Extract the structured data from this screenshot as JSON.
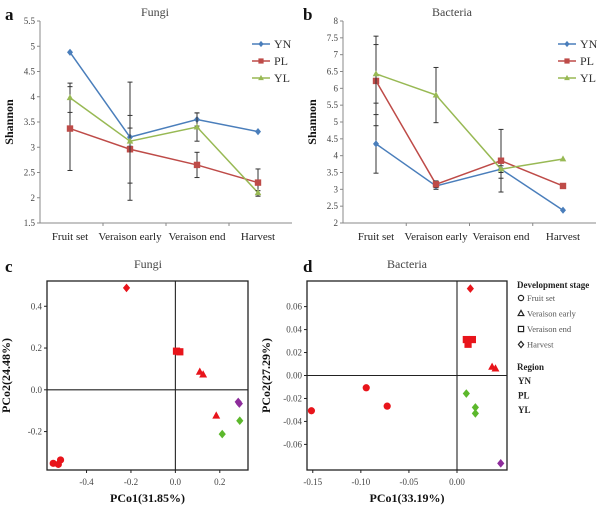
{
  "chart_data": [
    {
      "panel": "a",
      "type": "line",
      "title": "Fungi",
      "ylabel": "Shannon",
      "categories": [
        "Fruit set",
        "Veraison early",
        "Veraison end",
        "Harvest"
      ],
      "ylim": [
        1.5,
        5.5
      ],
      "yticks": [
        "1.5",
        "2",
        "2.5",
        "3",
        "3.5",
        "4",
        "4.5",
        "5",
        "5.5"
      ],
      "legend": "top-right",
      "series": [
        {
          "name": "YN",
          "color": "#4a7ebb",
          "marker": "diamond",
          "values": [
            4.88,
            3.2,
            3.55,
            3.31
          ],
          "errors": [
            0,
            0.18,
            0.13,
            0
          ]
        },
        {
          "name": "PL",
          "color": "#be4b48",
          "marker": "square",
          "values": [
            3.37,
            2.96,
            2.65,
            2.3
          ],
          "errors": [
            0.83,
            0.67,
            0.25,
            0.27
          ]
        },
        {
          "name": "YL",
          "color": "#98b954",
          "marker": "triangle",
          "values": [
            3.98,
            3.12,
            3.4,
            2.1
          ],
          "errors": [
            0.29,
            1.17,
            0.28,
            0.04
          ]
        }
      ]
    },
    {
      "panel": "b",
      "type": "line",
      "title": "Bacteria",
      "ylabel": "Shannon",
      "categories": [
        "Fruit set",
        "Veraison early",
        "Veraison end",
        "Harvest"
      ],
      "ylim": [
        2,
        8
      ],
      "yticks": [
        "2",
        "2.5",
        "3",
        "3.5",
        "4",
        "4.5",
        "5",
        "5.5",
        "6",
        "6.5",
        "7",
        "7.5",
        "8"
      ],
      "legend": "top-right",
      "series": [
        {
          "name": "YN",
          "color": "#4a7ebb",
          "marker": "diamond",
          "values": [
            4.35,
            3.1,
            3.6,
            2.38
          ],
          "errors": [
            0.87,
            0.1,
            0.27,
            0
          ]
        },
        {
          "name": "PL",
          "color": "#be4b48",
          "marker": "square",
          "values": [
            6.22,
            3.15,
            3.85,
            3.1
          ],
          "errors": [
            1.33,
            0.1,
            0.93,
            0
          ]
        },
        {
          "name": "YL",
          "color": "#98b954",
          "marker": "triangle",
          "values": [
            6.43,
            5.8,
            3.6,
            3.9
          ],
          "errors": [
            0.87,
            0.82,
            0.1,
            0
          ]
        }
      ]
    },
    {
      "panel": "c",
      "type": "scatter",
      "title": "Fungi",
      "xlabel": "PCo1(31.85%)",
      "ylabel": "PCo2(24.48%)",
      "xlim": [
        -0.578,
        0.327
      ],
      "ylim": [
        -0.384,
        0.521
      ],
      "xticks": [
        -0.4,
        -0.2,
        0.0,
        0.2
      ],
      "xtick_labels": [
        "-0.4",
        "-0.2",
        "0.0",
        "0.2"
      ],
      "yticks": [
        -0.2,
        0.0,
        0.2,
        0.4
      ],
      "ytick_labels": [
        "-0.2",
        "0.0",
        "0.2",
        "0.4"
      ],
      "points": [
        {
          "x": -0.22,
          "y": 0.488,
          "stage": "Harvest",
          "region": "YN"
        },
        {
          "x": 0.005,
          "y": 0.185,
          "stage": "Veraison end",
          "region": "YN"
        },
        {
          "x": 0.02,
          "y": 0.182,
          "stage": "Veraison end",
          "region": "YN"
        },
        {
          "x": 0.11,
          "y": 0.086,
          "stage": "Veraison early",
          "region": "YN"
        },
        {
          "x": 0.125,
          "y": 0.073,
          "stage": "Veraison early",
          "region": "YN"
        },
        {
          "x": 0.184,
          "y": -0.124,
          "stage": "Veraison early",
          "region": "YN"
        },
        {
          "x": 0.283,
          "y": -0.058,
          "stage": "Harvest",
          "region": "YL"
        },
        {
          "x": 0.288,
          "y": -0.066,
          "stage": "Harvest",
          "region": "YL"
        },
        {
          "x": 0.29,
          "y": -0.148,
          "stage": "Harvest",
          "region": "PL"
        },
        {
          "x": 0.211,
          "y": -0.212,
          "stage": "Harvest",
          "region": "PL"
        },
        {
          "x": -0.55,
          "y": -0.352,
          "stage": "Fruit set",
          "region": "YN"
        },
        {
          "x": -0.527,
          "y": -0.357,
          "stage": "Fruit set",
          "region": "YN"
        },
        {
          "x": -0.517,
          "y": -0.336,
          "stage": "Fruit set",
          "region": "YN"
        }
      ]
    },
    {
      "panel": "d",
      "type": "scatter",
      "title": "Bacteria",
      "xlabel": "PCo1(33.19%)",
      "ylabel": "PCo2(27.29%)",
      "xlim": [
        -0.156,
        0.052
      ],
      "ylim": [
        -0.0823,
        0.0823
      ],
      "xticks": [
        -0.15,
        -0.1,
        -0.05,
        0.0
      ],
      "xtick_labels": [
        "-0.15",
        "-0.10",
        "-0.05",
        "0.00"
      ],
      "yticks": [
        -0.06,
        -0.04,
        -0.02,
        0.0,
        0.02,
        0.04,
        0.06
      ],
      "ytick_labels": [
        "-0.06",
        "-0.04",
        "-0.02",
        "0.00",
        "0.02",
        "0.04",
        "0.06"
      ],
      "points": [
        {
          "x": 0.0139,
          "y": 0.0757,
          "stage": "Harvest",
          "region": "YN"
        },
        {
          "x": 0.0097,
          "y": 0.0313,
          "stage": "Veraison end",
          "region": "YN"
        },
        {
          "x": 0.016,
          "y": 0.0313,
          "stage": "Veraison end",
          "region": "YN"
        },
        {
          "x": 0.0115,
          "y": 0.0272,
          "stage": "Veraison end",
          "region": "YN"
        },
        {
          "x": 0.0365,
          "y": 0.0075,
          "stage": "Veraison early",
          "region": "YN"
        },
        {
          "x": 0.04,
          "y": 0.006,
          "stage": "Veraison early",
          "region": "YN"
        },
        {
          "x": 0.0097,
          "y": -0.0157,
          "stage": "Harvest",
          "region": "PL"
        },
        {
          "x": 0.0191,
          "y": -0.0278,
          "stage": "Harvest",
          "region": "PL"
        },
        {
          "x": 0.0191,
          "y": -0.033,
          "stage": "Harvest",
          "region": "PL"
        },
        {
          "x": 0.0455,
          "y": -0.0765,
          "stage": "Harvest",
          "region": "YL"
        },
        {
          "x": -0.0944,
          "y": -0.0107,
          "stage": "Fruit set",
          "region": "YN"
        },
        {
          "x": -0.0726,
          "y": -0.0267,
          "stage": "Fruit set",
          "region": "YN"
        },
        {
          "x": -0.1514,
          "y": -0.0307,
          "stage": "Fruit set",
          "region": "YN"
        }
      ]
    }
  ],
  "panel_labels": [
    "a",
    "b",
    "c",
    "d"
  ],
  "legend": {
    "stage_title": "Development stage",
    "stages": [
      {
        "label": "Fruit set",
        "marker": "circle"
      },
      {
        "label": "Veraison early",
        "marker": "triangle"
      },
      {
        "label": "Veraison end",
        "marker": "square"
      },
      {
        "label": "Harvest",
        "marker": "diamond"
      }
    ],
    "region_title": "Region",
    "regions": [
      {
        "label": "YN",
        "color": "#e8141b"
      },
      {
        "label": "PL",
        "color": "#5cb82c"
      },
      {
        "label": "YL",
        "color": "#8e2c9c"
      }
    ]
  }
}
